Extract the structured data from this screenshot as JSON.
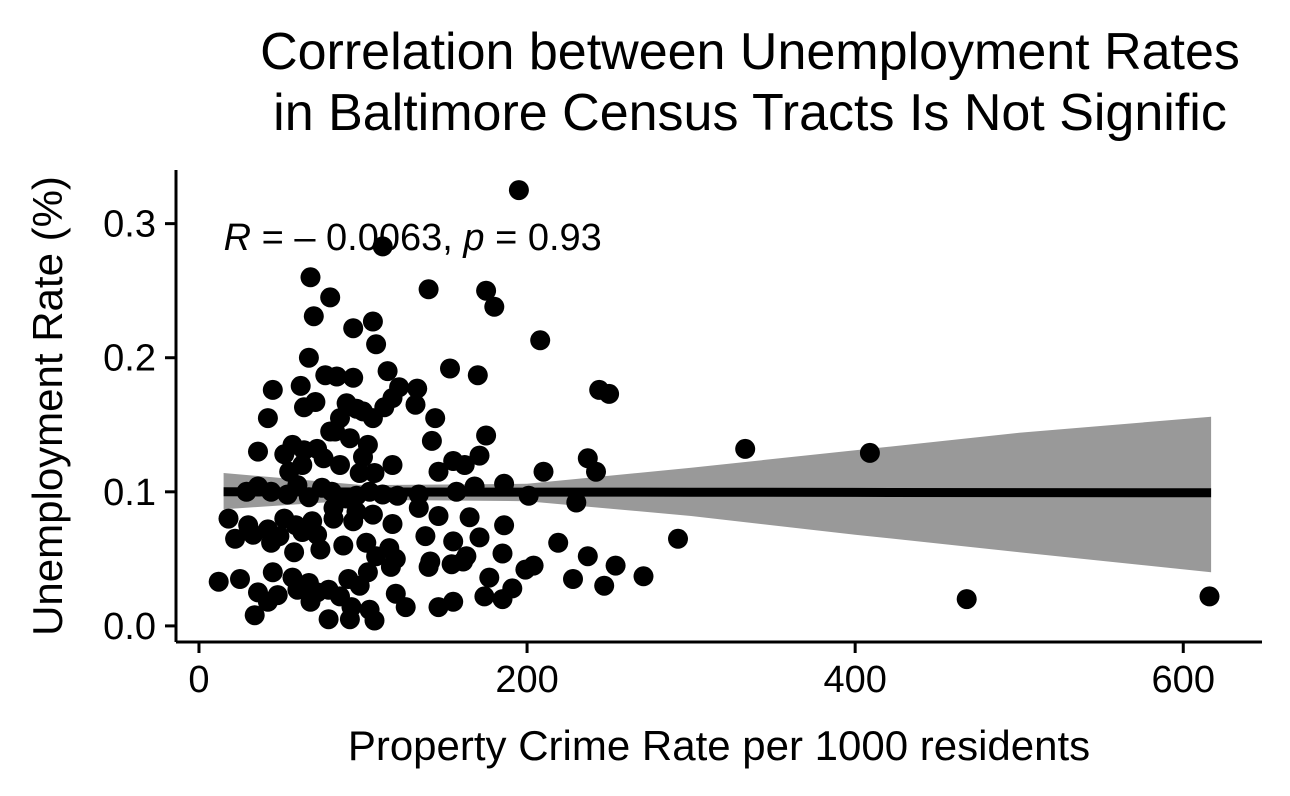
{
  "chart_data": {
    "type": "scatter",
    "title_lines": [
      "Correlation between Unemployment Rates",
      "in Baltimore Census Tracts Is Not Signific"
    ],
    "xlabel": "Property Crime Rate per 1000 residents",
    "ylabel": "Unemployment Rate (%)",
    "xlim": [
      -14,
      648
    ],
    "ylim": [
      -0.012,
      0.34
    ],
    "xticks": [
      0,
      200,
      400,
      600
    ],
    "xtick_labels": [
      "0",
      "200",
      "400",
      "600"
    ],
    "yticks": [
      0.0,
      0.1,
      0.2,
      0.3
    ],
    "ytick_labels": [
      "0.0",
      "0.1",
      "0.2",
      "0.3"
    ],
    "annotation": {
      "r_symbol": "R",
      "r_eq": " = ",
      "r_value": "– 0.0063",
      "sep": ", ",
      "p_symbol": "p",
      "p_eq": " = ",
      "p_value": "0.93",
      "x": 15,
      "y": 0.29
    },
    "regression": {
      "x": [
        15,
        100,
        200,
        300,
        400,
        500,
        617
      ],
      "y": [
        0.1,
        0.0999,
        0.0998,
        0.0997,
        0.0996,
        0.0994,
        0.0993
      ],
      "ci_lower": [
        0.087,
        0.094,
        0.093,
        0.082,
        0.068,
        0.055,
        0.04
      ],
      "ci_upper": [
        0.114,
        0.105,
        0.106,
        0.118,
        0.131,
        0.144,
        0.156
      ]
    },
    "grid": false,
    "colors": {
      "points": "#000000",
      "line": "#000000",
      "band": "#999999"
    },
    "points": [
      [
        195,
        0.325
      ],
      [
        112,
        0.283
      ],
      [
        68,
        0.26
      ],
      [
        140,
        0.251
      ],
      [
        175,
        0.25
      ],
      [
        80,
        0.245
      ],
      [
        180,
        0.238
      ],
      [
        70,
        0.231
      ],
      [
        106,
        0.227
      ],
      [
        94,
        0.222
      ],
      [
        208,
        0.213
      ],
      [
        108,
        0.21
      ],
      [
        67,
        0.2
      ],
      [
        170,
        0.187
      ],
      [
        115,
        0.19
      ],
      [
        153,
        0.192
      ],
      [
        77,
        0.187
      ],
      [
        84,
        0.186
      ],
      [
        94,
        0.185
      ],
      [
        133,
        0.177
      ],
      [
        122,
        0.178
      ],
      [
        45,
        0.176
      ],
      [
        62,
        0.179
      ],
      [
        244,
        0.176
      ],
      [
        250,
        0.173
      ],
      [
        90,
        0.166
      ],
      [
        71,
        0.167
      ],
      [
        100,
        0.16
      ],
      [
        132,
        0.165
      ],
      [
        118,
        0.17
      ],
      [
        113,
        0.163
      ],
      [
        42,
        0.155
      ],
      [
        64,
        0.163
      ],
      [
        96,
        0.162
      ],
      [
        86,
        0.155
      ],
      [
        106,
        0.155
      ],
      [
        144,
        0.155
      ],
      [
        83,
        0.145
      ],
      [
        80,
        0.145
      ],
      [
        92,
        0.14
      ],
      [
        103,
        0.135
      ],
      [
        142,
        0.138
      ],
      [
        57,
        0.135
      ],
      [
        72,
        0.132
      ],
      [
        52,
        0.128
      ],
      [
        64,
        0.131
      ],
      [
        100,
        0.126
      ],
      [
        175,
        0.142
      ],
      [
        36,
        0.13
      ],
      [
        63,
        0.12
      ],
      [
        76,
        0.125
      ],
      [
        118,
        0.12
      ],
      [
        86,
        0.12
      ],
      [
        107,
        0.114
      ],
      [
        55,
        0.115
      ],
      [
        98,
        0.114
      ],
      [
        146,
        0.115
      ],
      [
        162,
        0.12
      ],
      [
        155,
        0.123
      ],
      [
        171,
        0.127
      ],
      [
        210,
        0.115
      ],
      [
        242,
        0.115
      ],
      [
        237,
        0.125
      ],
      [
        29,
        0.1
      ],
      [
        36,
        0.104
      ],
      [
        44,
        0.1
      ],
      [
        54,
        0.098
      ],
      [
        60,
        0.105
      ],
      [
        67,
        0.096
      ],
      [
        75,
        0.103
      ],
      [
        81,
        0.1
      ],
      [
        90,
        0.095
      ],
      [
        96,
        0.097
      ],
      [
        104,
        0.1
      ],
      [
        112,
        0.098
      ],
      [
        121,
        0.097
      ],
      [
        134,
        0.098
      ],
      [
        157,
        0.1
      ],
      [
        168,
        0.104
      ],
      [
        186,
        0.106
      ],
      [
        201,
        0.097
      ],
      [
        230,
        0.092
      ],
      [
        333,
        0.132
      ],
      [
        409,
        0.129
      ],
      [
        18,
        0.08
      ],
      [
        30,
        0.075
      ],
      [
        42,
        0.072
      ],
      [
        52,
        0.08
      ],
      [
        63,
        0.07
      ],
      [
        72,
        0.068
      ],
      [
        82,
        0.08
      ],
      [
        94,
        0.078
      ],
      [
        106,
        0.083
      ],
      [
        118,
        0.076
      ],
      [
        134,
        0.088
      ],
      [
        146,
        0.082
      ],
      [
        165,
        0.081
      ],
      [
        186,
        0.075
      ],
      [
        49,
        0.067
      ],
      [
        58,
        0.055
      ],
      [
        74,
        0.057
      ],
      [
        88,
        0.06
      ],
      [
        102,
        0.062
      ],
      [
        116,
        0.058
      ],
      [
        138,
        0.067
      ],
      [
        155,
        0.063
      ],
      [
        171,
        0.066
      ],
      [
        22,
        0.065
      ],
      [
        33,
        0.068
      ],
      [
        44,
        0.062
      ],
      [
        59,
        0.075
      ],
      [
        69,
        0.078
      ],
      [
        82,
        0.088
      ],
      [
        96,
        0.085
      ],
      [
        108,
        0.052
      ],
      [
        120,
        0.05
      ],
      [
        141,
        0.048
      ],
      [
        154,
        0.046
      ],
      [
        163,
        0.052
      ],
      [
        185,
        0.054
      ],
      [
        219,
        0.062
      ],
      [
        237,
        0.052
      ],
      [
        254,
        0.045
      ],
      [
        292,
        0.065
      ],
      [
        45,
        0.04
      ],
      [
        57,
        0.036
      ],
      [
        67,
        0.032
      ],
      [
        79,
        0.027
      ],
      [
        91,
        0.035
      ],
      [
        103,
        0.04
      ],
      [
        117,
        0.044
      ],
      [
        140,
        0.044
      ],
      [
        161,
        0.048
      ],
      [
        177,
        0.036
      ],
      [
        199,
        0.042
      ],
      [
        204,
        0.045
      ],
      [
        228,
        0.035
      ],
      [
        271,
        0.037
      ],
      [
        12,
        0.033
      ],
      [
        25,
        0.035
      ],
      [
        36,
        0.025
      ],
      [
        48,
        0.023
      ],
      [
        60,
        0.027
      ],
      [
        72,
        0.025
      ],
      [
        86,
        0.022
      ],
      [
        98,
        0.03
      ],
      [
        120,
        0.024
      ],
      [
        174,
        0.022
      ],
      [
        191,
        0.028
      ],
      [
        247,
        0.03
      ],
      [
        42,
        0.018
      ],
      [
        68,
        0.018
      ],
      [
        93,
        0.014
      ],
      [
        104,
        0.012
      ],
      [
        126,
        0.014
      ],
      [
        146,
        0.014
      ],
      [
        155,
        0.018
      ],
      [
        185,
        0.02
      ],
      [
        34,
        0.008
      ],
      [
        79,
        0.005
      ],
      [
        92,
        0.005
      ],
      [
        107,
        0.004
      ],
      [
        468,
        0.02
      ],
      [
        616,
        0.022
      ]
    ]
  }
}
